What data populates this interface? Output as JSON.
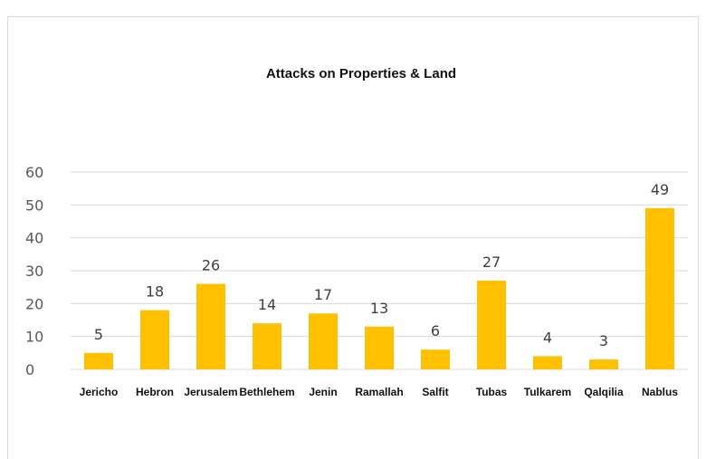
{
  "chart_data": {
    "type": "bar",
    "title": "Attacks on Properties & Land",
    "categories": [
      "Jericho",
      "Hebron",
      "Jerusalem",
      "Bethlehem",
      "Jenin",
      "Ramallah",
      "Salfit",
      "Tubas",
      "Tulkarem",
      "Qalqilia",
      "Nablus"
    ],
    "values": [
      5,
      18,
      26,
      14,
      17,
      13,
      6,
      27,
      4,
      3,
      49
    ],
    "ylim": [
      0,
      60
    ],
    "yticks": [
      0,
      10,
      20,
      30,
      40,
      50,
      60
    ],
    "grid": true,
    "legend": "none",
    "bar_color": "#FFC000",
    "data_labels": true
  }
}
